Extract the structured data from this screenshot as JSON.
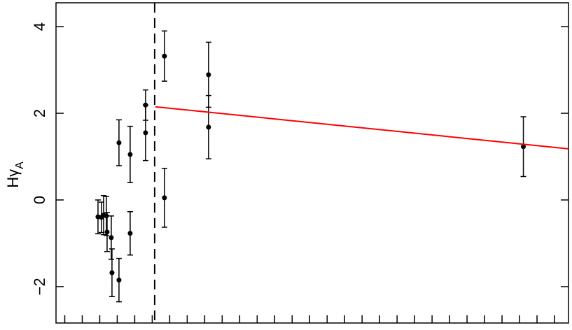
{
  "chart_data": {
    "type": "scatter",
    "ylabel": {
      "main": "Hγ",
      "subscript": "A"
    },
    "xlim": [
      -0.5,
      28.8
    ],
    "xticks": [
      0,
      1,
      2,
      3,
      4,
      5,
      6,
      7,
      8,
      9,
      10,
      11,
      12,
      13,
      14,
      15,
      16,
      17,
      18,
      19,
      20,
      21,
      22,
      23,
      24,
      25,
      26,
      27,
      28
    ],
    "ylim": [
      -2.84,
      4.55
    ],
    "yticks": [
      4,
      2,
      0,
      {
        "value": -2,
        "label": "−2"
      }
    ],
    "color": "#000000",
    "x": [
      1.9,
      2.1,
      2.22,
      2.38,
      2.42,
      2.66,
      2.7,
      3.1,
      3.1,
      3.74,
      3.74,
      4.62,
      4.62,
      5.7,
      5.7,
      8.22,
      8.22,
      26.22
    ],
    "values": [
      -0.39,
      -0.4,
      -0.35,
      -0.37,
      -0.74,
      -0.87,
      -1.68,
      -1.85,
      1.32,
      1.05,
      -0.77,
      2.19,
      1.55,
      3.32,
      0.05,
      2.89,
      1.68,
      1.23
    ],
    "errors": [
      0.39,
      0.35,
      0.45,
      0.45,
      0.45,
      0.5,
      0.55,
      0.5,
      0.53,
      0.65,
      0.5,
      0.35,
      0.64,
      0.58,
      0.68,
      0.75,
      0.73,
      0.69
    ],
    "vline": {
      "x": 5.14,
      "style": "dashed",
      "color": "#000000"
    },
    "fit": {
      "x": [
        5.18,
        28.8
      ],
      "values": [
        2.15,
        1.18
      ],
      "color": "#ff0000"
    }
  }
}
